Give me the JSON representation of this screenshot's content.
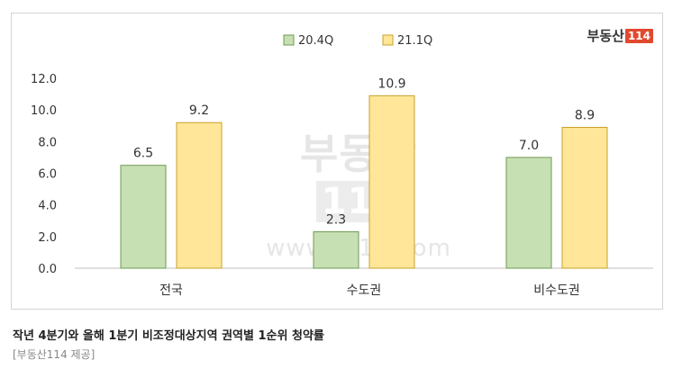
{
  "chart_data": {
    "type": "bar",
    "categories": [
      "전국",
      "수도권",
      "비수도권"
    ],
    "series": [
      {
        "name": "20.4Q",
        "values": [
          6.5,
          2.3,
          7.0
        ],
        "color": "#c6e0b4",
        "stroke": "#6f9a4f"
      },
      {
        "name": "21.1Q",
        "values": [
          9.2,
          10.9,
          8.9
        ],
        "color": "#ffe699",
        "stroke": "#c9a227"
      }
    ],
    "ylim": [
      0,
      12
    ],
    "yticks": [
      "0.0",
      "2.0",
      "4.0",
      "6.0",
      "8.0",
      "10.0",
      "12.0"
    ],
    "grid": false,
    "legend": "top-center"
  },
  "logo": {
    "text": "부동산",
    "box": "114"
  },
  "watermark": {
    "logo": "부동산",
    "box": "114",
    "url": "www.r114.com"
  },
  "caption": "작년 4분기와 올해 1분기 비조정대상지역 권역별 1순위 청약률",
  "source": "[부동산114 제공]"
}
